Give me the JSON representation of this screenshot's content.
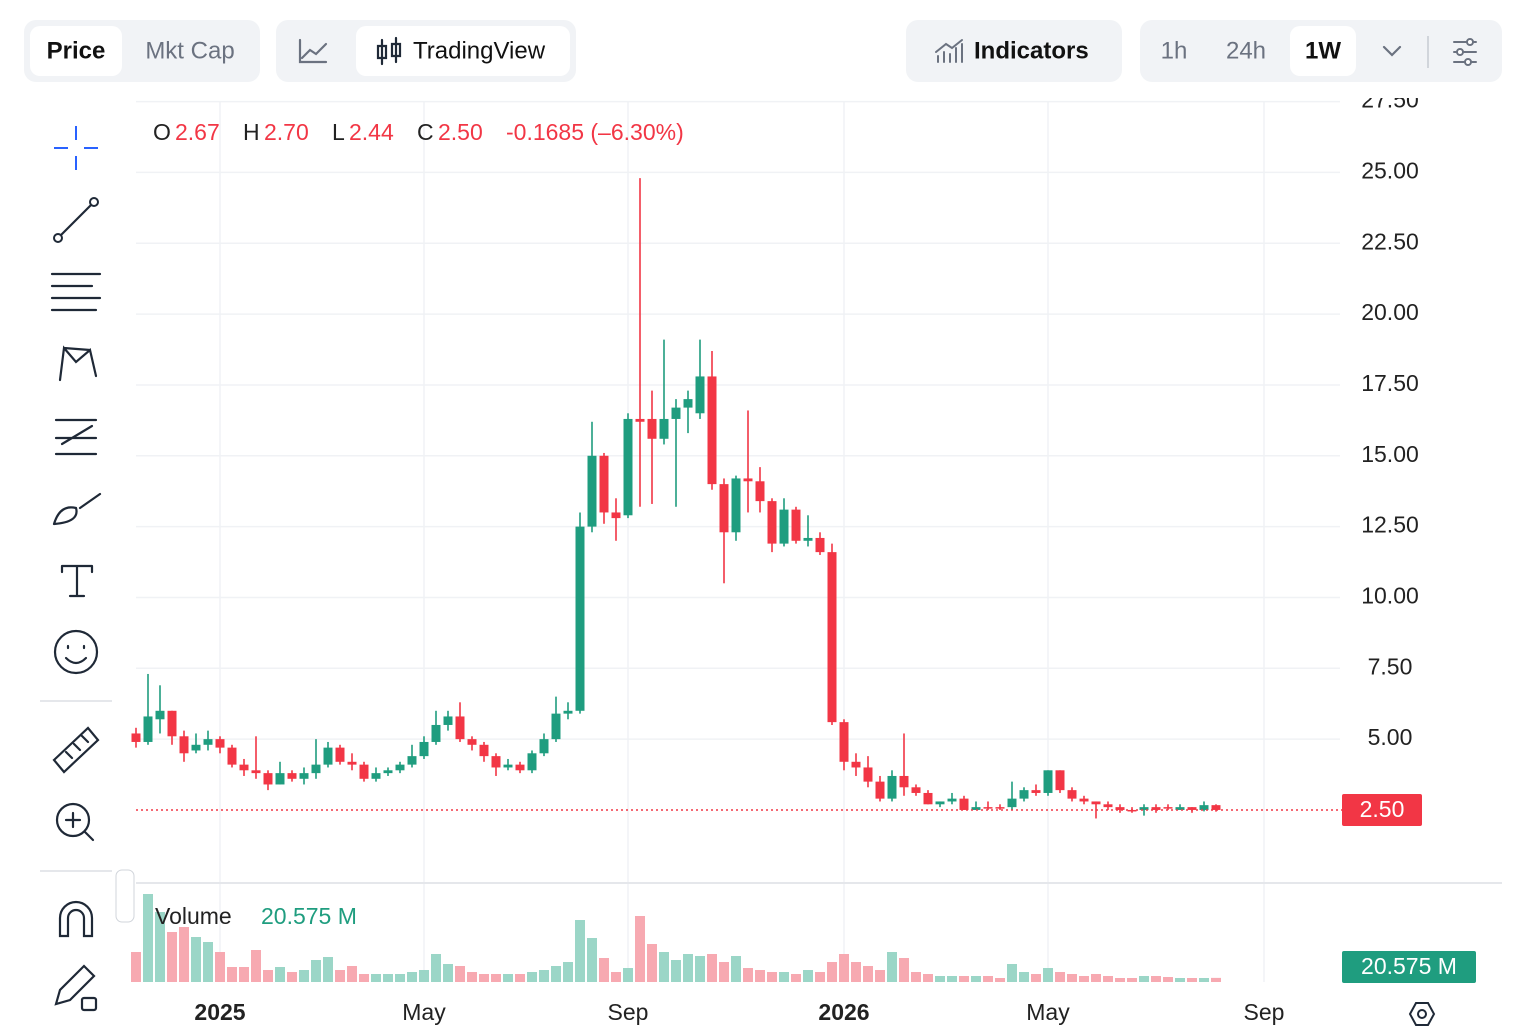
{
  "toolbar": {
    "price": "Price",
    "mkt_cap": "Mkt Cap",
    "tradingview": "TradingView",
    "indicators": "Indicators",
    "intervals": [
      "1h",
      "24h",
      "1W"
    ]
  },
  "chart_data": {
    "type": "candlestick",
    "up_color": "#1f9d7f",
    "down_color": "#f23645",
    "categories": [
      null,
      null,
      null,
      null,
      null,
      null,
      null,
      "2025",
      null,
      null,
      null,
      null,
      null,
      null,
      null,
      null,
      null,
      null,
      null,
      null,
      null,
      null,
      null,
      null,
      "May",
      null,
      null,
      null,
      null,
      null,
      null,
      null,
      null,
      null,
      null,
      null,
      null,
      null,
      null,
      null,
      null,
      "Sep",
      null,
      null,
      null,
      null,
      null,
      null,
      null,
      null,
      null,
      null,
      null,
      null,
      null,
      null,
      null,
      null,
      null,
      "2026",
      null,
      null,
      null,
      null,
      null,
      null,
      null,
      null,
      null,
      null,
      null,
      null,
      null,
      null,
      null,
      null,
      "May",
      null,
      null,
      null,
      null,
      null,
      null,
      null,
      null,
      null,
      null,
      null,
      null,
      null,
      null,
      null,
      null,
      null,
      "Sep"
    ],
    "open": [
      5.2,
      4.9,
      5.7,
      6.0,
      5.1,
      4.6,
      4.8,
      5.0,
      4.7,
      4.1,
      3.9,
      3.8,
      3.4,
      3.8,
      3.6,
      3.8,
      4.1,
      4.7,
      4.2,
      4.1,
      3.6,
      3.8,
      3.9,
      4.1,
      4.4,
      4.9,
      5.5,
      5.8,
      5.0,
      4.8,
      4.4,
      4.0,
      4.1,
      3.9,
      4.5,
      5.0,
      5.9,
      6.0,
      12.5,
      15.0,
      13.0,
      12.9,
      16.3,
      16.3,
      15.6,
      16.3,
      16.7,
      16.5,
      17.8,
      14.0,
      12.3,
      14.2,
      14.1,
      13.4,
      11.9,
      13.1,
      12.0,
      12.1,
      11.6,
      5.6,
      4.2,
      4.0,
      3.5,
      2.9,
      3.7,
      3.3,
      3.1,
      2.7,
      2.8,
      2.9,
      2.5,
      2.6,
      2.6,
      2.6,
      2.9,
      3.2,
      3.1,
      3.9,
      3.2,
      2.9,
      2.8,
      2.7,
      2.6,
      2.5,
      2.5,
      2.6,
      2.6,
      2.5,
      2.6,
      2.5,
      2.67,
      null,
      null,
      null,
      null
    ],
    "high": [
      5.4,
      7.3,
      6.9,
      6.0,
      5.3,
      5.2,
      5.3,
      5.1,
      4.8,
      4.3,
      5.1,
      3.9,
      4.2,
      3.9,
      4.0,
      5.0,
      4.9,
      4.8,
      4.5,
      4.2,
      4.0,
      4.0,
      4.2,
      4.8,
      5.1,
      6.0,
      6.0,
      6.3,
      5.1,
      4.9,
      4.5,
      4.3,
      4.2,
      4.6,
      5.2,
      6.5,
      6.3,
      13.0,
      16.2,
      15.1,
      13.5,
      16.5,
      24.8,
      17.3,
      19.1,
      17.0,
      17.3,
      19.1,
      18.7,
      14.2,
      14.3,
      16.6,
      14.6,
      13.5,
      13.5,
      13.2,
      12.9,
      12.3,
      11.9,
      5.7,
      4.5,
      4.4,
      3.7,
      3.9,
      5.2,
      3.4,
      3.2,
      2.8,
      3.1,
      3.0,
      2.8,
      2.8,
      2.7,
      3.5,
      3.3,
      3.4,
      3.9,
      3.9,
      3.3,
      3.0,
      2.8,
      2.8,
      2.7,
      2.6,
      2.7,
      2.7,
      2.7,
      2.7,
      2.6,
      2.8,
      2.7,
      null,
      null,
      null,
      null
    ],
    "low": [
      4.7,
      4.8,
      5.2,
      4.8,
      4.2,
      4.5,
      4.6,
      4.5,
      4.0,
      3.7,
      3.6,
      3.2,
      3.4,
      3.5,
      3.4,
      3.6,
      4.0,
      4.1,
      3.9,
      3.5,
      3.5,
      3.7,
      3.8,
      4.0,
      4.3,
      4.8,
      5.3,
      4.9,
      4.6,
      4.2,
      3.7,
      3.9,
      3.8,
      3.8,
      4.4,
      4.9,
      5.7,
      5.9,
      12.3,
      12.6,
      12.0,
      12.8,
      13.2,
      13.3,
      15.4,
      13.2,
      15.8,
      16.3,
      13.8,
      10.5,
      12.0,
      13.0,
      13.0,
      11.6,
      11.8,
      11.9,
      11.8,
      11.5,
      5.5,
      3.9,
      3.7,
      3.3,
      2.8,
      2.8,
      3.0,
      3.0,
      2.7,
      2.6,
      2.7,
      2.5,
      2.5,
      2.5,
      2.5,
      2.5,
      2.8,
      3.0,
      3.0,
      3.1,
      2.8,
      2.7,
      2.2,
      2.5,
      2.4,
      2.4,
      2.3,
      2.4,
      2.5,
      2.5,
      2.4,
      2.45,
      2.44,
      null,
      null,
      null,
      null
    ],
    "close": [
      4.9,
      5.8,
      6.0,
      5.1,
      4.5,
      4.8,
      5.0,
      4.7,
      4.1,
      3.9,
      3.8,
      3.4,
      3.8,
      3.6,
      3.8,
      4.1,
      4.7,
      4.2,
      4.1,
      3.6,
      3.8,
      3.9,
      4.1,
      4.4,
      4.9,
      5.5,
      5.8,
      5.0,
      4.8,
      4.4,
      4.0,
      4.1,
      3.9,
      4.5,
      5.0,
      5.9,
      6.0,
      12.5,
      15.0,
      13.0,
      12.8,
      16.3,
      16.2,
      15.6,
      16.3,
      16.7,
      17.0,
      17.8,
      14.0,
      12.3,
      14.2,
      14.1,
      13.4,
      11.9,
      13.1,
      12.0,
      12.1,
      11.6,
      5.6,
      4.2,
      4.0,
      3.5,
      2.9,
      3.7,
      3.3,
      3.1,
      2.7,
      2.8,
      2.9,
      2.5,
      2.6,
      2.55,
      2.58,
      2.9,
      3.2,
      3.1,
      3.9,
      3.2,
      2.9,
      2.8,
      2.7,
      2.6,
      2.5,
      2.48,
      2.6,
      2.5,
      2.58,
      2.6,
      2.5,
      2.67,
      2.5,
      null,
      null,
      null,
      null
    ],
    "ylim": [
      0,
      27.5
    ],
    "yticks": [
      {
        "value": 5,
        "label": "5.00"
      },
      {
        "value": 7.5,
        "label": "7.50"
      },
      {
        "value": 10,
        "label": "10.00"
      },
      {
        "value": 12.5,
        "label": "12.50"
      },
      {
        "value": 15,
        "label": "15.00"
      },
      {
        "value": 17.5,
        "label": "17.50"
      },
      {
        "value": 20,
        "label": "20.00"
      },
      {
        "value": 22.5,
        "label": "22.50"
      },
      {
        "value": 25,
        "label": "25.00"
      },
      {
        "value": 27.5,
        "label": "27.50"
      }
    ],
    "grid": true,
    "ohlc_legend": [
      {
        "name": "O",
        "label": "2.67"
      },
      {
        "name": "H",
        "label": "2.70"
      },
      {
        "name": "L",
        "label": "2.44"
      },
      {
        "name": "C",
        "label": "2.50"
      }
    ],
    "change": "-0.1685 (–6.30%)",
    "last_price": {
      "value": 2.5,
      "label": "2.50"
    },
    "volume": {
      "name": "Volume",
      "up_color": "#9bd6c7",
      "down_color": "#f7a9b1",
      "ylim": [
        0,
        450
      ],
      "values": [
        150,
        440,
        350,
        250,
        275,
        225,
        200,
        150,
        75,
        75,
        160,
        60,
        75,
        50,
        60,
        110,
        125,
        60,
        80,
        40,
        40,
        40,
        40,
        50,
        60,
        140,
        90,
        80,
        50,
        40,
        40,
        40,
        40,
        50,
        60,
        80,
        100,
        310,
        220,
        120,
        50,
        70,
        330,
        190,
        150,
        110,
        140,
        130,
        140,
        100,
        130,
        70,
        60,
        50,
        50,
        40,
        60,
        50,
        100,
        140,
        100,
        80,
        60,
        150,
        120,
        50,
        40,
        30,
        30,
        30,
        30,
        30,
        20,
        90,
        50,
        40,
        70,
        50,
        40,
        30,
        40,
        30,
        20,
        20,
        30,
        30,
        25,
        20,
        20,
        20,
        20.575,
        null,
        null,
        null,
        null
      ],
      "last": {
        "value": 20.575,
        "label": "20.575 M"
      }
    }
  }
}
